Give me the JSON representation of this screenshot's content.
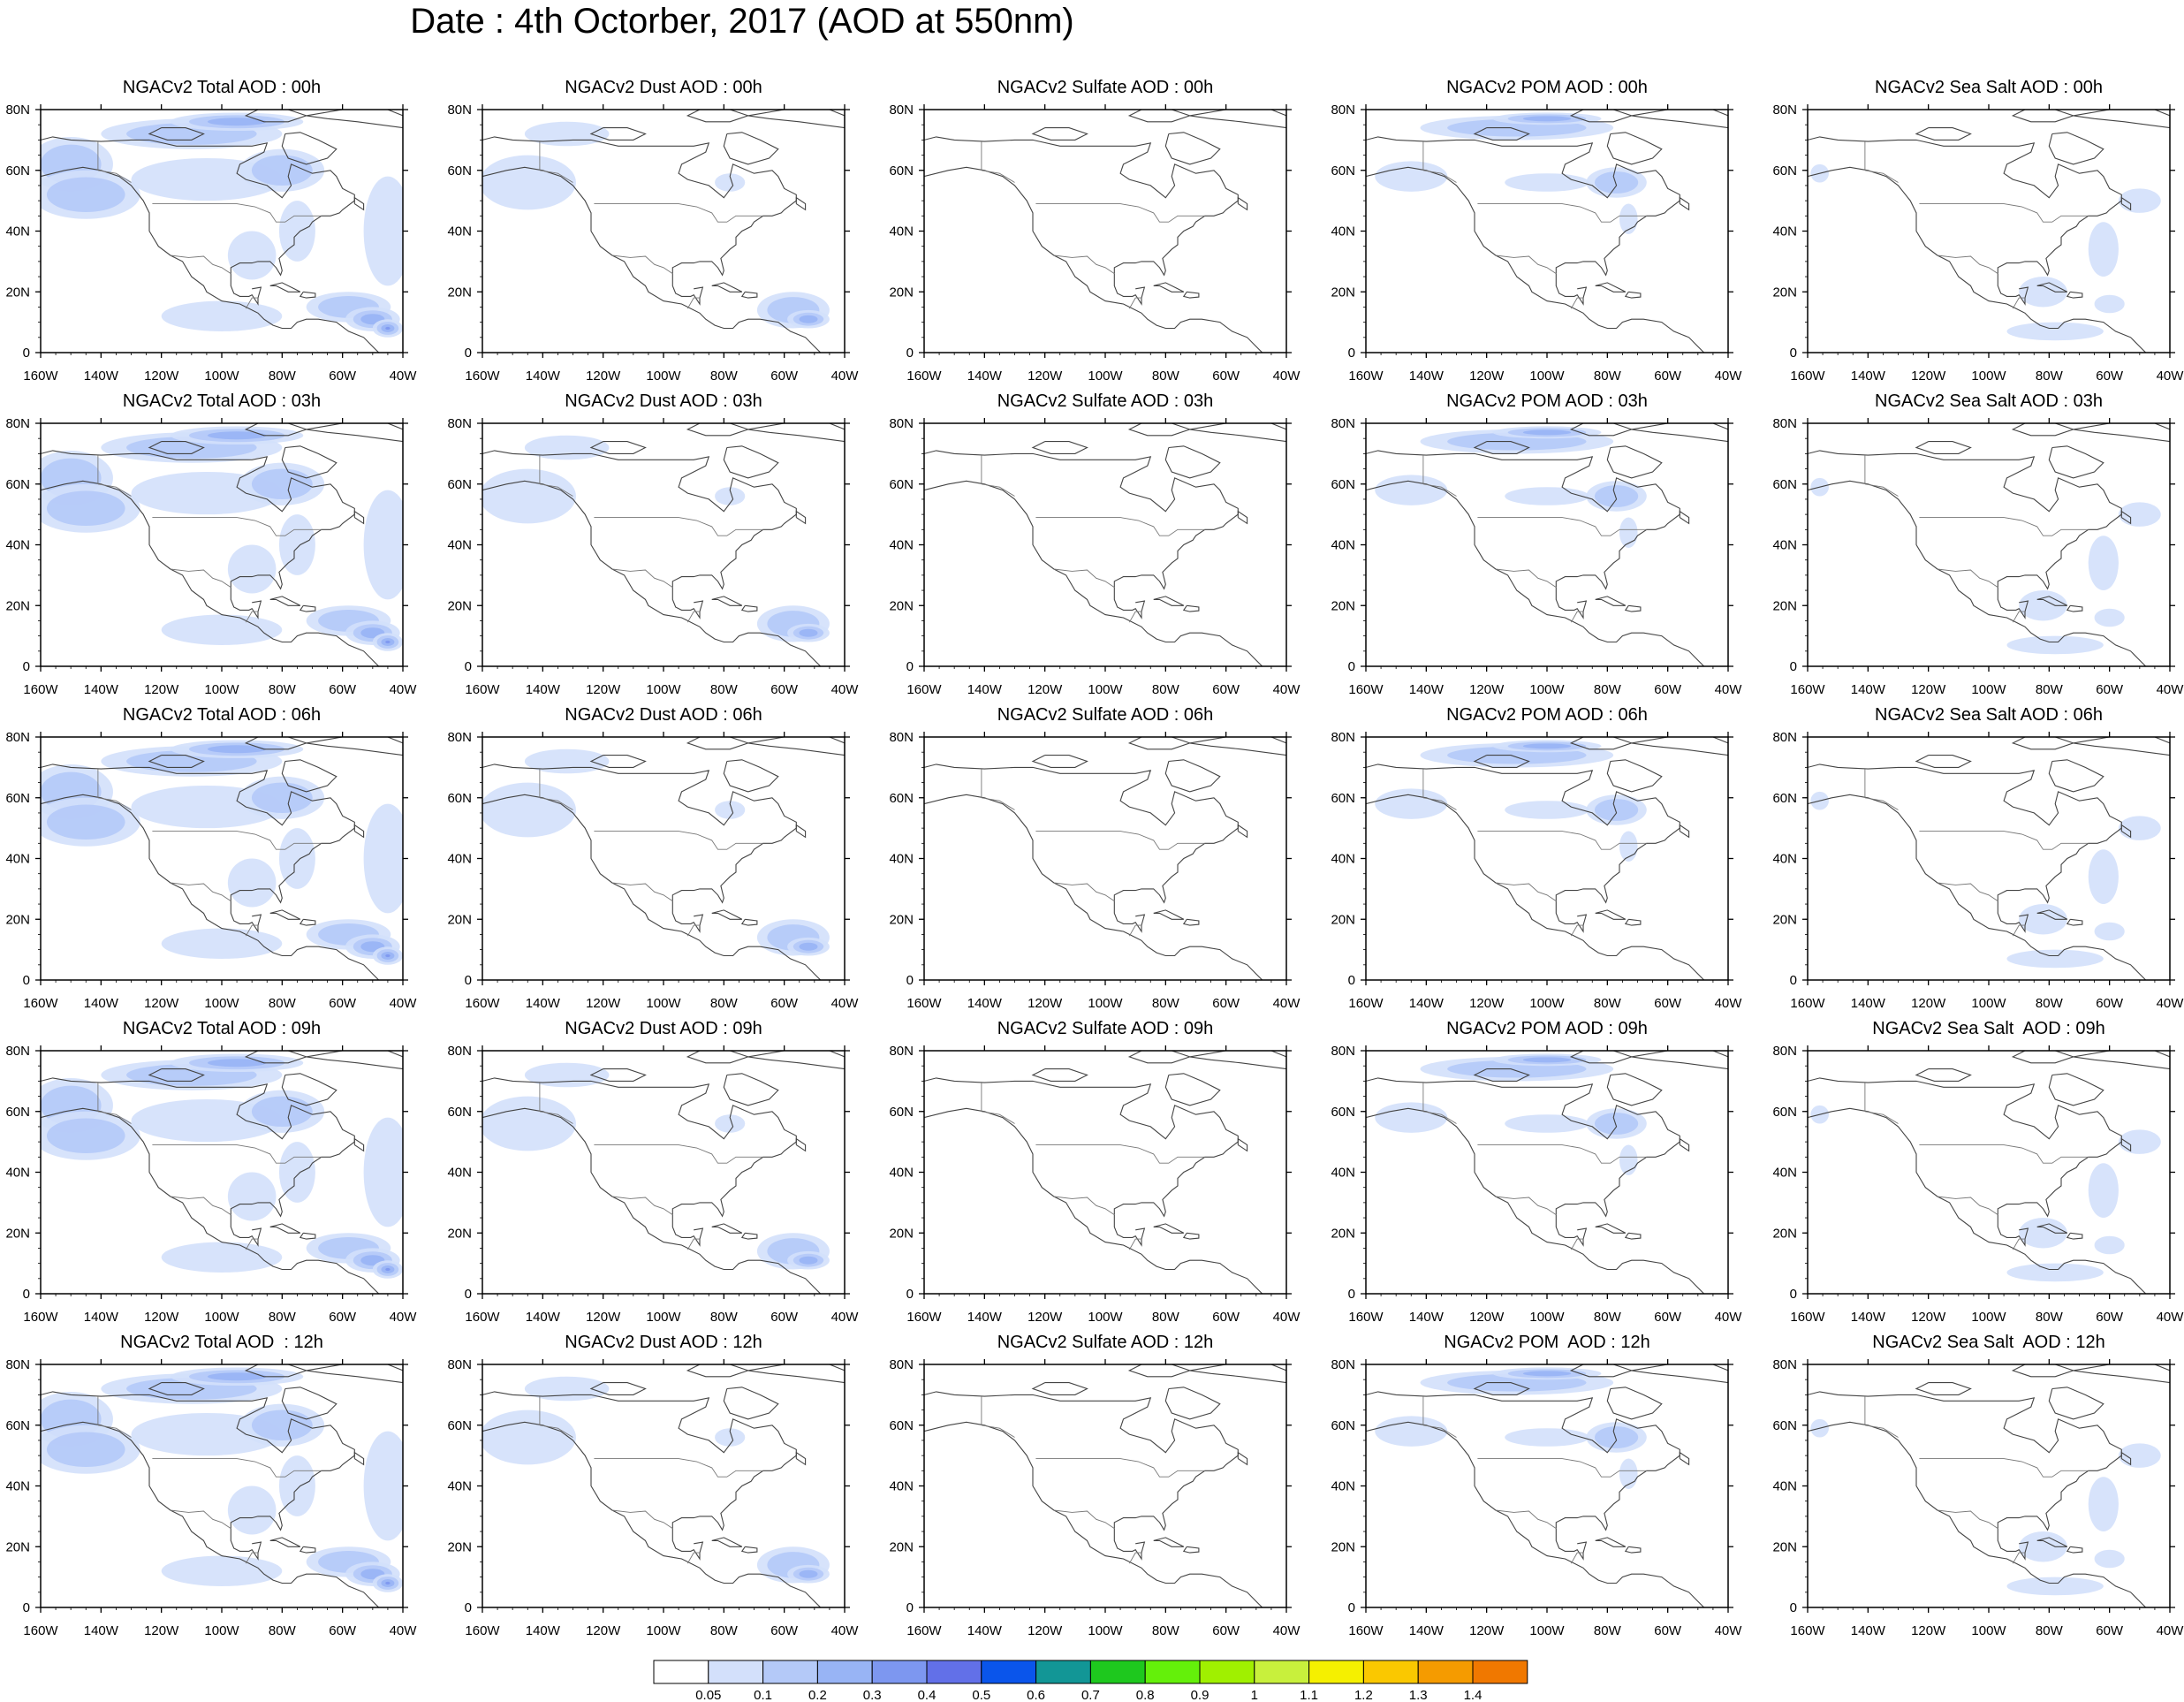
{
  "figure": {
    "title": "Date : 4th Octorber, 2017 (AOD at 550nm)"
  },
  "map": {
    "lon_range": [
      -160,
      -40
    ],
    "lat_range": [
      0,
      80
    ],
    "lon_ticks": [
      "160W",
      "140W",
      "120W",
      "100W",
      "80W",
      "60W",
      "40W"
    ],
    "lat_ticks": [
      "0",
      "20N",
      "40N",
      "60N",
      "80N"
    ]
  },
  "rows": [
    "00h",
    "03h",
    "06h",
    "09h",
    "12h"
  ],
  "columns": [
    "total",
    "dust",
    "sulfate",
    "pom",
    "seasalt"
  ],
  "panels": [
    [
      "NGACv2 Total AOD : 00h",
      "NGACv2 Dust AOD : 00h",
      "NGACv2 Sulfate AOD : 00h",
      "NGACv2 POM AOD : 00h",
      "NGACv2 Sea Salt AOD : 00h"
    ],
    [
      "NGACv2 Total AOD : 03h",
      "NGACv2 Dust AOD : 03h",
      "NGACv2 Sulfate AOD : 03h",
      "NGACv2 POM AOD : 03h",
      "NGACv2 Sea Salt AOD : 03h"
    ],
    [
      "NGACv2 Total AOD : 06h",
      "NGACv2 Dust AOD : 06h",
      "NGACv2 Sulfate AOD : 06h",
      "NGACv2 POM AOD : 06h",
      "NGACv2 Sea Salt AOD : 06h"
    ],
    [
      "NGACv2 Total AOD : 09h",
      "NGACv2 Dust AOD : 09h",
      "NGACv2 Sulfate AOD : 09h",
      "NGACv2 POM AOD : 09h",
      "NGACv2 Sea Salt  AOD : 09h"
    ],
    [
      "NGACv2 Total AOD  : 12h",
      "NGACv2 Dust AOD : 12h",
      "NGACv2 Sulfate AOD : 12h",
      "NGACv2 POM  AOD : 12h",
      "NGACv2 Sea Salt  AOD : 12h"
    ]
  ],
  "colorbar": {
    "labels": [
      "0.05",
      "0.1",
      "0.2",
      "0.3",
      "0.4",
      "0.5",
      "0.6",
      "0.7",
      "0.8",
      "0.9",
      "1",
      "1.1",
      "1.2",
      "1.3",
      "1.4"
    ],
    "colors": [
      "#ffffff",
      "#d3e0fb",
      "#b4c9f8",
      "#98b4f5",
      "#7d97f0",
      "#6270e8",
      "#0a55eb",
      "#129696",
      "#1ec81e",
      "#64f00a",
      "#a0f000",
      "#c8f03c",
      "#f5f000",
      "#fac800",
      "#f59b00",
      "#f07800",
      "#f0501e",
      "#f01e0a"
    ]
  },
  "plumes": {
    "total": [
      {
        "lon": -150,
        "lat": 62,
        "rx": 14,
        "ry": 9,
        "level": 2
      },
      {
        "lon": -145,
        "lat": 52,
        "rx": 18,
        "ry": 8,
        "level": 2
      },
      {
        "lon": -110,
        "lat": 72,
        "rx": 30,
        "ry": 5,
        "level": 2
      },
      {
        "lon": -95,
        "lat": 76,
        "rx": 22,
        "ry": 3,
        "level": 3
      },
      {
        "lon": -105,
        "lat": 57,
        "rx": 25,
        "ry": 7,
        "level": 1
      },
      {
        "lon": -80,
        "lat": 60,
        "rx": 14,
        "ry": 7,
        "level": 2
      },
      {
        "lon": -75,
        "lat": 40,
        "rx": 6,
        "ry": 10,
        "level": 1
      },
      {
        "lon": -90,
        "lat": 32,
        "rx": 8,
        "ry": 8,
        "level": 1
      },
      {
        "lon": -100,
        "lat": 12,
        "rx": 20,
        "ry": 5,
        "level": 1
      },
      {
        "lon": -58,
        "lat": 15,
        "rx": 14,
        "ry": 5,
        "level": 2
      },
      {
        "lon": -50,
        "lat": 11,
        "rx": 9,
        "ry": 4,
        "level": 3
      },
      {
        "lon": -45,
        "lat": 8,
        "rx": 5,
        "ry": 3,
        "level": 4
      },
      {
        "lon": -45,
        "lat": 40,
        "rx": 8,
        "ry": 18,
        "level": 1
      }
    ],
    "dust": [
      {
        "lon": -145,
        "lat": 56,
        "rx": 16,
        "ry": 9,
        "level": 1
      },
      {
        "lon": -132,
        "lat": 72,
        "rx": 14,
        "ry": 4,
        "level": 1
      },
      {
        "lon": -78,
        "lat": 56,
        "rx": 5,
        "ry": 3,
        "level": 1
      },
      {
        "lon": -57,
        "lat": 14,
        "rx": 12,
        "ry": 6,
        "level": 2
      },
      {
        "lon": -52,
        "lat": 11,
        "rx": 7,
        "ry": 3,
        "level": 3
      }
    ],
    "sulfate": [],
    "pom": [
      {
        "lon": -110,
        "lat": 74,
        "rx": 32,
        "ry": 4,
        "level": 2
      },
      {
        "lon": -100,
        "lat": 77,
        "rx": 18,
        "ry": 2,
        "level": 3
      },
      {
        "lon": -145,
        "lat": 58,
        "rx": 12,
        "ry": 5,
        "level": 1
      },
      {
        "lon": -100,
        "lat": 56,
        "rx": 14,
        "ry": 3,
        "level": 1
      },
      {
        "lon": -77,
        "lat": 56,
        "rx": 10,
        "ry": 5,
        "level": 2
      },
      {
        "lon": -73,
        "lat": 44,
        "rx": 3,
        "ry": 5,
        "level": 1
      }
    ],
    "seasalt": [
      {
        "lon": -156,
        "lat": 59,
        "rx": 3,
        "ry": 3,
        "level": 1
      },
      {
        "lon": -50,
        "lat": 50,
        "rx": 7,
        "ry": 4,
        "level": 1
      },
      {
        "lon": -62,
        "lat": 34,
        "rx": 5,
        "ry": 9,
        "level": 1
      },
      {
        "lon": -82,
        "lat": 20,
        "rx": 8,
        "ry": 5,
        "level": 1
      },
      {
        "lon": -78,
        "lat": 7,
        "rx": 16,
        "ry": 3,
        "level": 1
      },
      {
        "lon": -60,
        "lat": 16,
        "rx": 5,
        "ry": 3,
        "level": 1
      }
    ]
  }
}
